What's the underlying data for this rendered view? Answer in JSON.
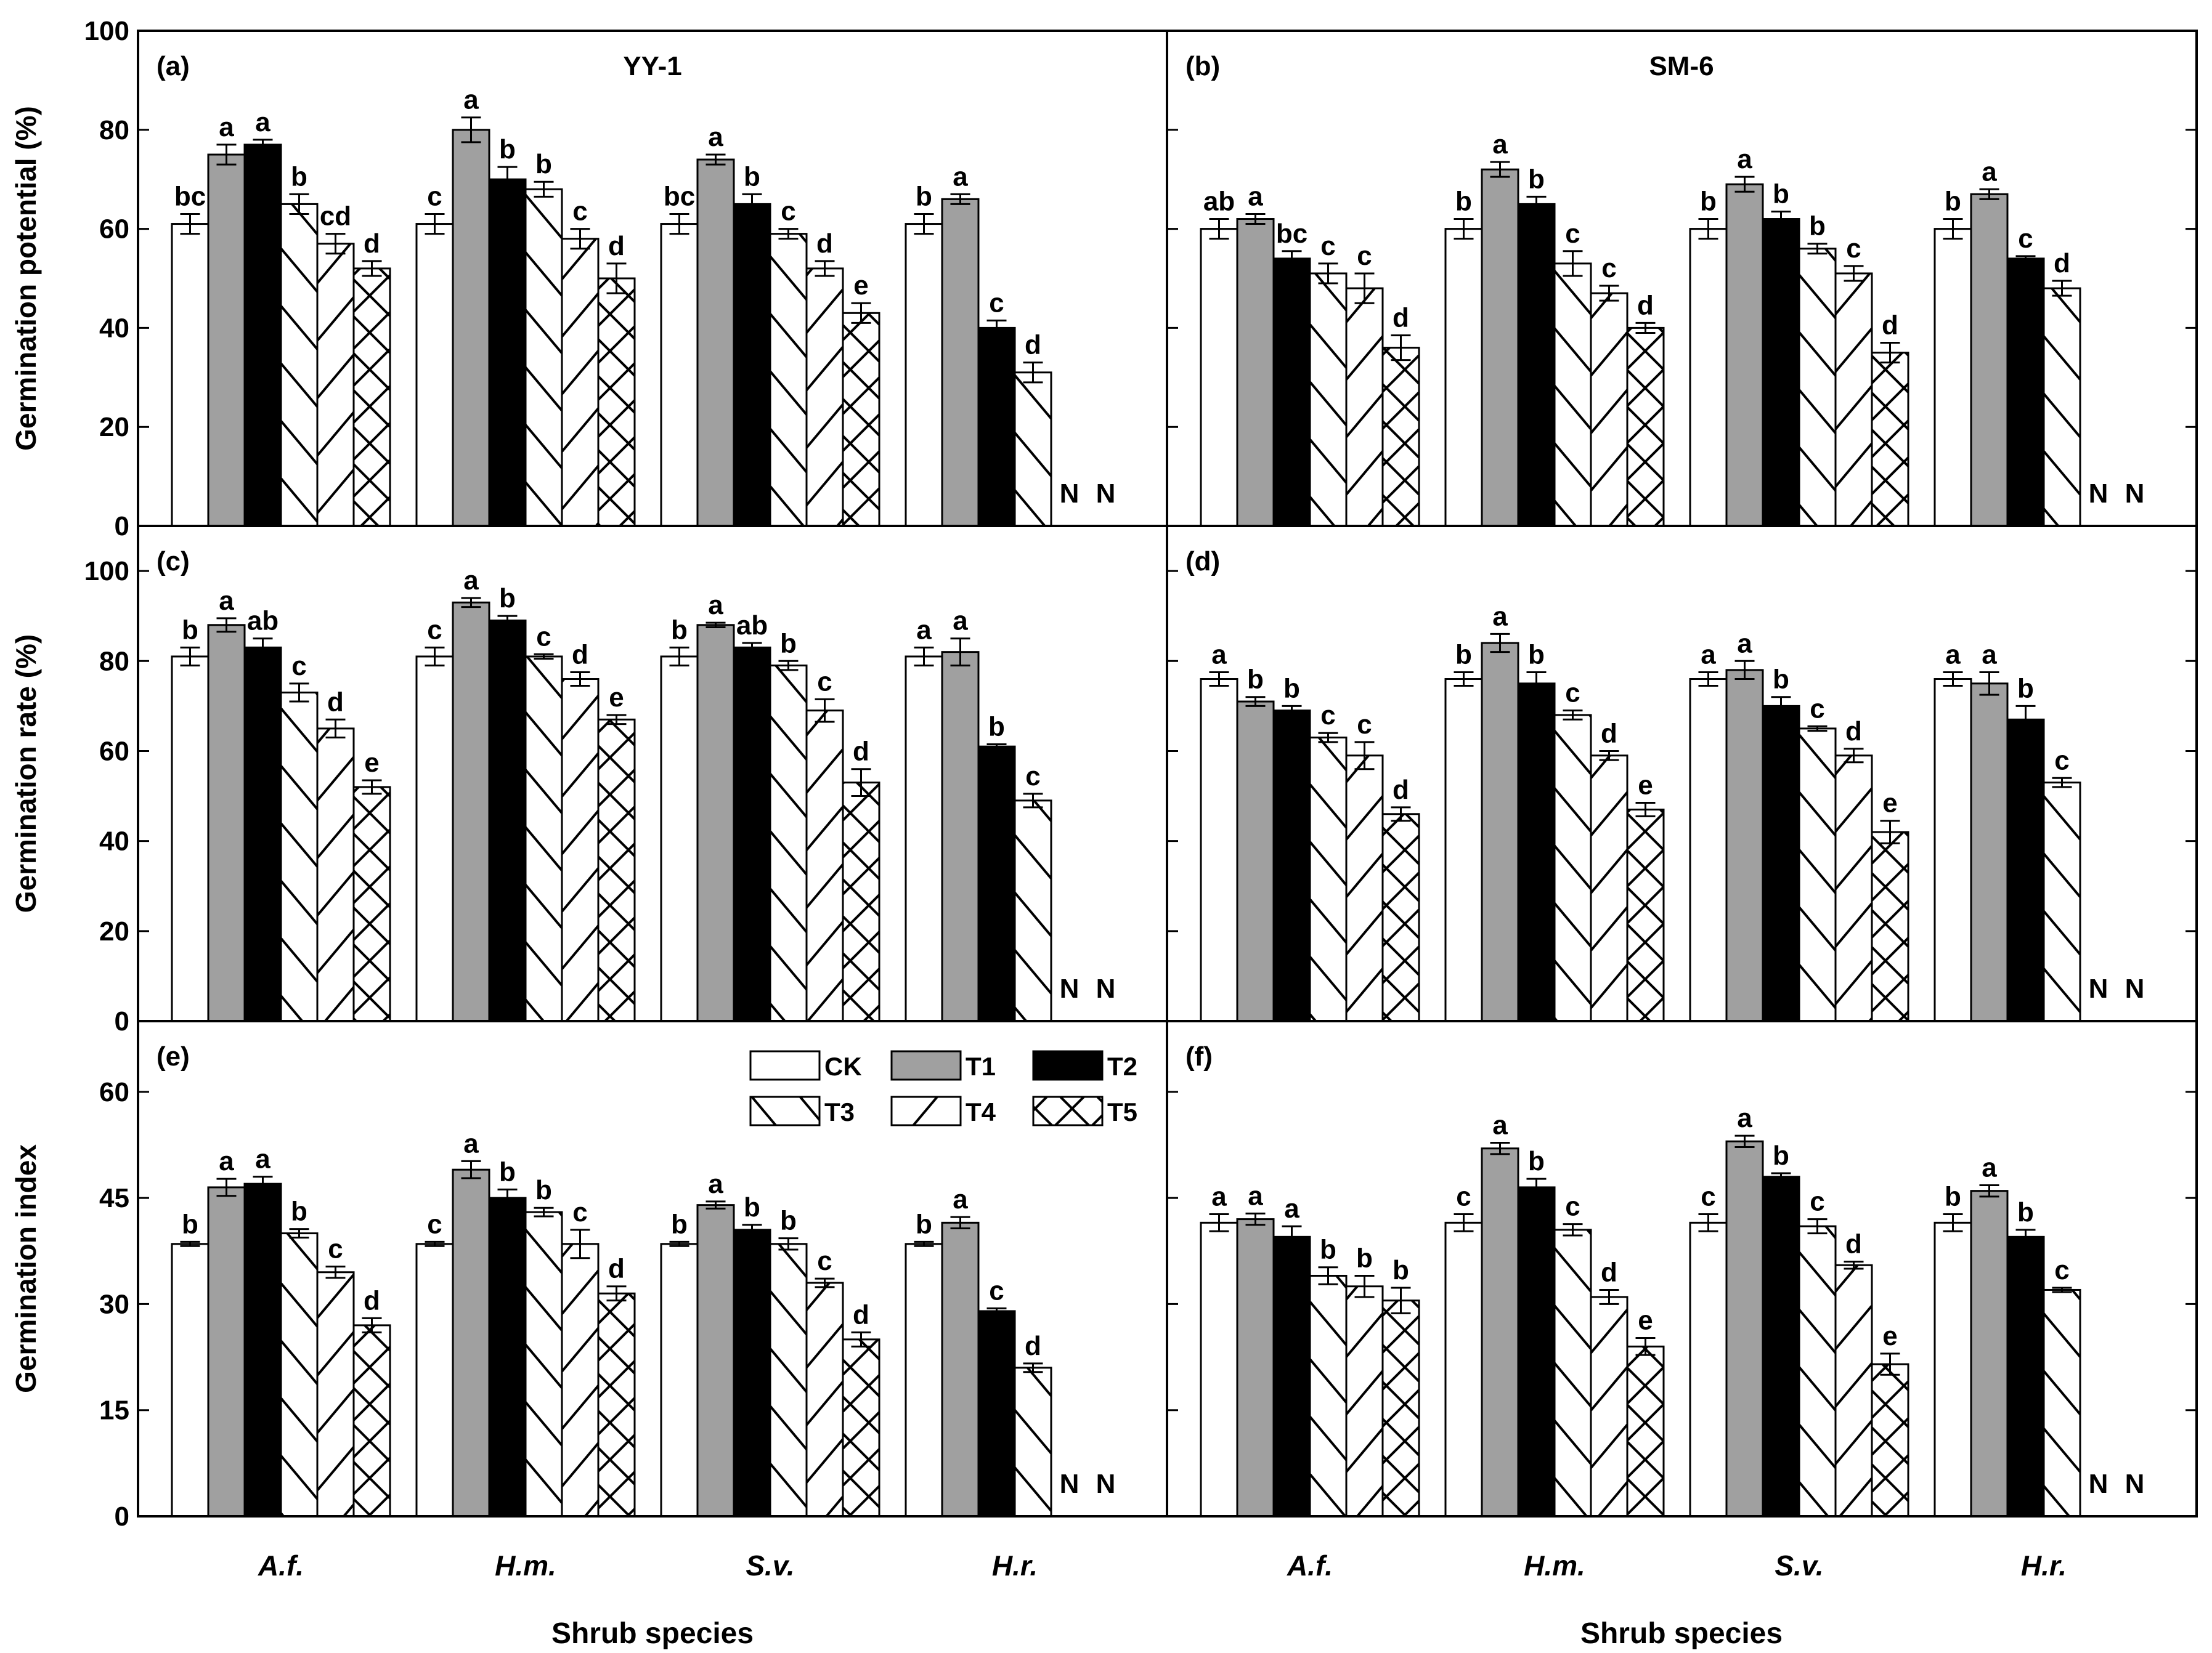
{
  "figure": {
    "x_axis_title": "Shrub species",
    "categories": [
      "A.f.",
      "H.m.",
      "S.v.",
      "H.r."
    ],
    "treatments": [
      "CK",
      "T1",
      "T2",
      "T3",
      "T4",
      "T5"
    ],
    "not_detected_mark": "N",
    "legend_position": "inside panel (e), top-right"
  },
  "chart_data": [
    {
      "type": "bar",
      "panel_label": "(a)",
      "panel_title": "YY-1",
      "ylabel": "Germination potential (%)",
      "ylim": [
        0,
        100
      ],
      "yticks": [
        0,
        20,
        40,
        60,
        80,
        100
      ],
      "categories": [
        "A.f.",
        "H.m.",
        "S.v.",
        "H.r."
      ],
      "series": [
        {
          "name": "CK",
          "values": [
            61,
            61,
            61,
            61
          ],
          "errors": [
            2,
            2,
            2,
            2
          ],
          "letters": [
            "bc",
            "c",
            "bc",
            "b"
          ]
        },
        {
          "name": "T1",
          "values": [
            75,
            80,
            74,
            66
          ],
          "errors": [
            2,
            2.5,
            1,
            1
          ],
          "letters": [
            "a",
            "a",
            "a",
            "a"
          ]
        },
        {
          "name": "T2",
          "values": [
            77,
            70,
            65,
            40
          ],
          "errors": [
            1,
            2.5,
            2,
            1.5
          ],
          "letters": [
            "a",
            "b",
            "b",
            "c"
          ]
        },
        {
          "name": "T3",
          "values": [
            65,
            68,
            59,
            31
          ],
          "errors": [
            2,
            1.5,
            1,
            2
          ],
          "letters": [
            "b",
            "b",
            "c",
            "d"
          ]
        },
        {
          "name": "T4",
          "values": [
            57,
            58,
            52,
            null
          ],
          "errors": [
            2,
            2,
            1.5,
            null
          ],
          "letters": [
            "cd",
            "c",
            "d",
            "N"
          ]
        },
        {
          "name": "T5",
          "values": [
            52,
            50,
            43,
            null
          ],
          "errors": [
            1.5,
            3,
            2,
            null
          ],
          "letters": [
            "d",
            "d",
            "e",
            "N"
          ]
        }
      ]
    },
    {
      "type": "bar",
      "panel_label": "(b)",
      "panel_title": "SM-6",
      "ylabel": "Germination potential (%)",
      "ylim": [
        0,
        100
      ],
      "yticks": [
        0,
        20,
        40,
        60,
        80,
        100
      ],
      "categories": [
        "A.f.",
        "H.m.",
        "S.v.",
        "H.r."
      ],
      "series": [
        {
          "name": "CK",
          "values": [
            60,
            60,
            60,
            60
          ],
          "errors": [
            2,
            2,
            2,
            2
          ],
          "letters": [
            "ab",
            "b",
            "b",
            "b"
          ]
        },
        {
          "name": "T1",
          "values": [
            62,
            72,
            69,
            67
          ],
          "errors": [
            1,
            1.5,
            1.5,
            1
          ],
          "letters": [
            "a",
            "a",
            "a",
            "a"
          ]
        },
        {
          "name": "T2",
          "values": [
            54,
            65,
            62,
            54
          ],
          "errors": [
            1.5,
            1.5,
            1.5,
            0.5
          ],
          "letters": [
            "bc",
            "b",
            "b",
            "c"
          ]
        },
        {
          "name": "T3",
          "values": [
            51,
            53,
            56,
            48
          ],
          "errors": [
            2,
            2.5,
            1,
            1.5
          ],
          "letters": [
            "c",
            "c",
            "b",
            "d"
          ]
        },
        {
          "name": "T4",
          "values": [
            48,
            47,
            51,
            null
          ],
          "errors": [
            3,
            1.5,
            1.5,
            null
          ],
          "letters": [
            "c",
            "c",
            "c",
            "N"
          ]
        },
        {
          "name": "T5",
          "values": [
            36,
            40,
            35,
            null
          ],
          "errors": [
            2.5,
            1,
            2,
            null
          ],
          "letters": [
            "d",
            "d",
            "d",
            "N"
          ]
        }
      ]
    },
    {
      "type": "bar",
      "panel_label": "(c)",
      "panel_title": "",
      "ylabel": "Germination rate (%)",
      "ylim": [
        0,
        110
      ],
      "yticks": [
        0,
        20,
        40,
        60,
        80,
        100
      ],
      "categories": [
        "A.f.",
        "H.m.",
        "S.v.",
        "H.r."
      ],
      "series": [
        {
          "name": "CK",
          "values": [
            81,
            81,
            81,
            81
          ],
          "errors": [
            2,
            2,
            2,
            2
          ],
          "letters": [
            "b",
            "c",
            "b",
            "a"
          ]
        },
        {
          "name": "T1",
          "values": [
            88,
            93,
            88,
            82
          ],
          "errors": [
            1.5,
            1,
            0.5,
            3
          ],
          "letters": [
            "a",
            "a",
            "a",
            "a"
          ]
        },
        {
          "name": "T2",
          "values": [
            83,
            89,
            83,
            61
          ],
          "errors": [
            2,
            1,
            1,
            0.5
          ],
          "letters": [
            "ab",
            "b",
            "ab",
            "b"
          ]
        },
        {
          "name": "T3",
          "values": [
            73,
            81,
            79,
            49
          ],
          "errors": [
            2,
            0.5,
            1,
            1.5
          ],
          "letters": [
            "c",
            "c",
            "b",
            "c"
          ]
        },
        {
          "name": "T4",
          "values": [
            65,
            76,
            69,
            null
          ],
          "errors": [
            2,
            1.5,
            2.5,
            null
          ],
          "letters": [
            "d",
            "d",
            "c",
            "N"
          ]
        },
        {
          "name": "T5",
          "values": [
            52,
            67,
            53,
            null
          ],
          "errors": [
            1.5,
            1,
            3,
            null
          ],
          "letters": [
            "e",
            "e",
            "d",
            "N"
          ]
        }
      ]
    },
    {
      "type": "bar",
      "panel_label": "(d)",
      "panel_title": "",
      "ylabel": "Germination rate (%)",
      "ylim": [
        0,
        110
      ],
      "yticks": [
        0,
        20,
        40,
        60,
        80,
        100
      ],
      "categories": [
        "A.f.",
        "H.m.",
        "S.v.",
        "H.r."
      ],
      "series": [
        {
          "name": "CK",
          "values": [
            76,
            76,
            76,
            76
          ],
          "errors": [
            1.5,
            1.5,
            1.5,
            1.5
          ],
          "letters": [
            "a",
            "b",
            "a",
            "a"
          ]
        },
        {
          "name": "T1",
          "values": [
            71,
            84,
            78,
            75
          ],
          "errors": [
            1,
            2,
            2,
            2.5
          ],
          "letters": [
            "b",
            "a",
            "a",
            "a"
          ]
        },
        {
          "name": "T2",
          "values": [
            69,
            75,
            70,
            67
          ],
          "errors": [
            1,
            2.5,
            2,
            3
          ],
          "letters": [
            "b",
            "b",
            "b",
            "b"
          ]
        },
        {
          "name": "T3",
          "values": [
            63,
            68,
            65,
            53
          ],
          "errors": [
            1,
            1,
            0.5,
            1
          ],
          "letters": [
            "c",
            "c",
            "c",
            "c"
          ]
        },
        {
          "name": "T4",
          "values": [
            59,
            59,
            59,
            null
          ],
          "errors": [
            3,
            1,
            1.5,
            null
          ],
          "letters": [
            "c",
            "d",
            "d",
            "N"
          ]
        },
        {
          "name": "T5",
          "values": [
            46,
            47,
            42,
            null
          ],
          "errors": [
            1.5,
            1.5,
            2.5,
            null
          ],
          "letters": [
            "d",
            "e",
            "e",
            "N"
          ]
        }
      ]
    },
    {
      "type": "bar",
      "panel_label": "(e)",
      "panel_title": "",
      "ylabel": "Germination index",
      "ylim": [
        0,
        70
      ],
      "yticks": [
        0,
        15,
        30,
        45,
        60
      ],
      "categories": [
        "A.f.",
        "H.m.",
        "S.v.",
        "H.r."
      ],
      "series": [
        {
          "name": "CK",
          "values": [
            38.5,
            38.5,
            38.5,
            38.5
          ],
          "errors": [
            0.3,
            0.3,
            0.3,
            0.3
          ],
          "letters": [
            "b",
            "c",
            "b",
            "b"
          ]
        },
        {
          "name": "T1",
          "values": [
            46.5,
            49,
            44,
            41.5
          ],
          "errors": [
            1.2,
            1.2,
            0.5,
            0.8
          ],
          "letters": [
            "a",
            "a",
            "a",
            "a"
          ]
        },
        {
          "name": "T2",
          "values": [
            47,
            45,
            40.5,
            29
          ],
          "errors": [
            1,
            1.2,
            0.7,
            0.4
          ],
          "letters": [
            "a",
            "b",
            "b",
            "c"
          ]
        },
        {
          "name": "T3",
          "values": [
            40,
            43,
            38.5,
            21
          ],
          "errors": [
            0.6,
            0.6,
            0.8,
            0.6
          ],
          "letters": [
            "b",
            "b",
            "b",
            "d"
          ]
        },
        {
          "name": "T4",
          "values": [
            34.5,
            38.5,
            33,
            null
          ],
          "errors": [
            0.8,
            2,
            0.6,
            null
          ],
          "letters": [
            "c",
            "c",
            "c",
            "N"
          ]
        },
        {
          "name": "T5",
          "values": [
            27,
            31.5,
            25,
            null
          ],
          "errors": [
            1,
            1,
            1,
            null
          ],
          "letters": [
            "d",
            "d",
            "d",
            "N"
          ]
        }
      ]
    },
    {
      "type": "bar",
      "panel_label": "(f)",
      "panel_title": "",
      "ylabel": "Germination index",
      "ylim": [
        0,
        70
      ],
      "yticks": [
        0,
        15,
        30,
        45,
        60
      ],
      "categories": [
        "A.f.",
        "H.m.",
        "S.v.",
        "H.r."
      ],
      "series": [
        {
          "name": "CK",
          "values": [
            41.5,
            41.5,
            41.5,
            41.5
          ],
          "errors": [
            1.2,
            1.2,
            1.2,
            1.2
          ],
          "letters": [
            "a",
            "c",
            "c",
            "b"
          ]
        },
        {
          "name": "T1",
          "values": [
            42,
            52,
            53,
            46
          ],
          "errors": [
            0.8,
            0.8,
            0.8,
            0.8
          ],
          "letters": [
            "a",
            "a",
            "a",
            "a"
          ]
        },
        {
          "name": "T2",
          "values": [
            39.5,
            46.5,
            48,
            39.5
          ],
          "errors": [
            1.5,
            1.2,
            0.5,
            1
          ],
          "letters": [
            "a",
            "b",
            "b",
            "b"
          ]
        },
        {
          "name": "T3",
          "values": [
            34,
            40.5,
            41,
            32
          ],
          "errors": [
            1.2,
            0.8,
            1,
            0.3
          ],
          "letters": [
            "b",
            "c",
            "c",
            "c"
          ]
        },
        {
          "name": "T4",
          "values": [
            32.5,
            31,
            35.5,
            null
          ],
          "errors": [
            1.5,
            1,
            0.5,
            null
          ],
          "letters": [
            "b",
            "d",
            "d",
            "N"
          ]
        },
        {
          "name": "T5",
          "values": [
            30.5,
            24,
            21.5,
            null
          ],
          "errors": [
            1.8,
            1.2,
            1.5,
            null
          ],
          "letters": [
            "b",
            "e",
            "e",
            "N"
          ]
        }
      ]
    }
  ]
}
